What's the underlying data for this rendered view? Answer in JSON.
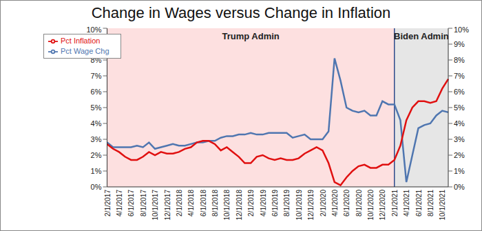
{
  "chart_data": {
    "type": "line",
    "title": "Change in Wages versus Change in Inflation",
    "categories": [
      "2/1/2017",
      null,
      "4/1/2017",
      null,
      "6/1/2017",
      null,
      "8/1/2017",
      null,
      "10/1/2017",
      null,
      "12/1/2017",
      null,
      "2/1/2018",
      null,
      "4/1/2018",
      null,
      "6/1/2018",
      null,
      "8/1/2018",
      null,
      "10/1/2018",
      null,
      "12/1/2018",
      null,
      "2/1/2019",
      null,
      "4/1/2019",
      null,
      "6/1/2019",
      null,
      "8/1/2019",
      null,
      "10/1/2019",
      null,
      "12/1/2019",
      null,
      "2/1/2020",
      null,
      "4/1/2020",
      null,
      "6/1/2020",
      null,
      "8/1/2020",
      null,
      "10/1/2020",
      null,
      "12/1/2020",
      null,
      "2/1/2021",
      null,
      "4/1/2021",
      null,
      "6/1/2021",
      null,
      "8/1/2021",
      null,
      "10/1/2021",
      null
    ],
    "series": [
      {
        "name": "Pct Wage Chg",
        "color": "#4f76b0",
        "values": [
          2.8,
          2.5,
          2.5,
          2.5,
          2.5,
          2.6,
          2.5,
          2.8,
          2.4,
          2.5,
          2.6,
          2.7,
          2.6,
          2.6,
          2.7,
          2.8,
          2.8,
          2.9,
          2.9,
          3.1,
          3.2,
          3.2,
          3.3,
          3.3,
          3.4,
          3.3,
          3.3,
          3.4,
          3.4,
          3.4,
          3.4,
          3.1,
          3.2,
          3.3,
          3.0,
          3.0,
          3.0,
          3.5,
          8.1,
          6.7,
          5.0,
          4.8,
          4.7,
          4.8,
          4.5,
          4.5,
          5.4,
          5.2,
          5.2,
          4.2,
          0.3,
          2.0,
          3.7,
          3.9,
          4.0,
          4.5,
          4.8,
          4.7
        ]
      },
      {
        "name": "Pct Inflation",
        "color": "#e01010",
        "values": [
          2.7,
          2.4,
          2.2,
          1.9,
          1.7,
          1.7,
          1.9,
          2.2,
          2.0,
          2.2,
          2.1,
          2.1,
          2.2,
          2.4,
          2.5,
          2.8,
          2.9,
          2.9,
          2.7,
          2.3,
          2.5,
          2.2,
          1.9,
          1.5,
          1.5,
          1.9,
          2.0,
          1.8,
          1.7,
          1.8,
          1.7,
          1.7,
          1.8,
          2.1,
          2.3,
          2.5,
          2.3,
          1.5,
          0.3,
          0.1,
          0.6,
          1.0,
          1.3,
          1.4,
          1.2,
          1.2,
          1.4,
          1.4,
          1.7,
          2.6,
          4.2,
          5.0,
          5.4,
          5.4,
          5.3,
          5.4,
          6.2,
          6.8
        ]
      }
    ],
    "ylim": [
      0,
      10
    ],
    "yticks": [
      {
        "value": 0,
        "label": "0%"
      },
      {
        "value": 1,
        "label": "1%"
      },
      {
        "value": 2,
        "label": "2%"
      },
      {
        "value": 3,
        "label": "3%"
      },
      {
        "value": 4,
        "label": "4%"
      },
      {
        "value": 5,
        "label": "5%"
      },
      {
        "value": 6,
        "label": "6%"
      },
      {
        "value": 7,
        "label": "7%"
      },
      {
        "value": 8,
        "label": "8%"
      },
      {
        "value": 9,
        "label": "9%"
      },
      {
        "value": 10,
        "label": "10%"
      }
    ],
    "y2lim": [
      0,
      10
    ],
    "y2ticks": [
      {
        "value": 0,
        "label": "0%"
      },
      {
        "value": 1,
        "label": "1%"
      },
      {
        "value": 2,
        "label": "2%"
      },
      {
        "value": 3,
        "label": "3%"
      },
      {
        "value": 4,
        "label": "4%"
      },
      {
        "value": 5,
        "label": "5%"
      },
      {
        "value": 6,
        "label": "6%"
      },
      {
        "value": 7,
        "label": "7%"
      },
      {
        "value": 8,
        "label": "8%"
      },
      {
        "value": 9,
        "label": "9%"
      },
      {
        "value": 10,
        "label": "10%"
      }
    ],
    "annotations": [
      {
        "text": "Trump Admin",
        "x_start": "2/1/2017",
        "x_end": "2/1/2021",
        "color": "#fde0e0"
      },
      {
        "text": "Biden Admin",
        "x_start": "2/1/2021",
        "color": "#e6e6e6"
      }
    ],
    "grid": false,
    "legend": "upper left",
    "marker": "none",
    "line_style": "solid"
  }
}
